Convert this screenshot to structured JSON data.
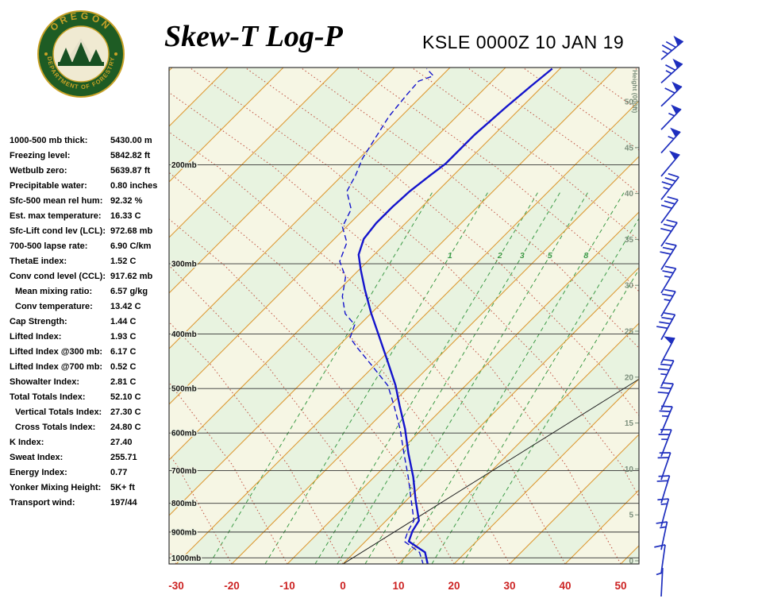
{
  "header": {
    "title": "Skew-T Log-P",
    "station_line": "KSLE 0000Z 10 JAN 19",
    "logo_top": "OREGON",
    "logo_bottom": "DEPARTMENT OF FORESTRY"
  },
  "stats": [
    {
      "label": "1000-500 mb thick:",
      "value": "5430.00 m",
      "indent": false
    },
    {
      "label": "Freezing level:",
      "value": "5842.82 ft",
      "indent": false
    },
    {
      "label": "Wetbulb zero:",
      "value": "5639.87 ft",
      "indent": false
    },
    {
      "label": "Precipitable water:",
      "value": "0.80 inches",
      "indent": false
    },
    {
      "label": "Sfc-500 mean rel hum:",
      "value": "92.32 %",
      "indent": false
    },
    {
      "label": "Est. max temperature:",
      "value": "16.33 C",
      "indent": false
    },
    {
      "label": "Sfc-Lift cond lev (LCL):",
      "value": "972.68 mb",
      "indent": false
    },
    {
      "label": "700-500 lapse rate:",
      "value": "6.90 C/km",
      "indent": false
    },
    {
      "label": "ThetaE index:",
      "value": "1.52 C",
      "indent": false
    },
    {
      "label": "Conv cond level (CCL):",
      "value": "917.62 mb",
      "indent": false
    },
    {
      "label": "Mean mixing ratio:",
      "value": "6.57 g/kg",
      "indent": true
    },
    {
      "label": "Conv temperature:",
      "value": "13.42 C",
      "indent": true
    },
    {
      "label": "Cap Strength:",
      "value": "1.44 C",
      "indent": false
    },
    {
      "label": "Lifted Index:",
      "value": "1.93 C",
      "indent": false
    },
    {
      "label": "Lifted Index @300 mb:",
      "value": "6.17 C",
      "indent": false
    },
    {
      "label": "Lifted Index @700 mb:",
      "value": "0.52 C",
      "indent": false
    },
    {
      "label": "Showalter Index:",
      "value": "2.81 C",
      "indent": false
    },
    {
      "label": "Total Totals Index:",
      "value": "52.10 C",
      "indent": false
    },
    {
      "label": "Vertical Totals Index:",
      "value": "27.30 C",
      "indent": true
    },
    {
      "label": "Cross Totals Index:",
      "value": "24.80 C",
      "indent": true
    },
    {
      "label": "K Index:",
      "value": "27.40",
      "indent": false
    },
    {
      "label": "Sweat Index:",
      "value": "255.71",
      "indent": false
    },
    {
      "label": "Energy Index:",
      "value": "0.77",
      "indent": false
    },
    {
      "label": "Yonker Mixing Height:",
      "value": "5K+ ft",
      "indent": false
    },
    {
      "label": "Transport wind:",
      "value": "197/44",
      "indent": false
    }
  ],
  "chart_data": {
    "type": "skew-t-log-p",
    "pressure_levels": [
      200,
      300,
      400,
      500,
      600,
      700,
      800,
      900,
      1000
    ],
    "pressure_label_suffix": "mb",
    "temp_axis": {
      "ticks": [
        -30,
        -20,
        -10,
        0,
        10,
        20,
        30,
        40,
        50
      ],
      "unit": "C"
    },
    "height_axis": {
      "label": "Height (000ft)",
      "ticks": [
        50,
        45,
        40,
        35,
        30,
        25,
        20,
        15,
        10,
        5,
        0
      ]
    },
    "mixing_ratio_lines": {
      "lines": [
        {
          "w": 0.4,
          "t": -24
        },
        {
          "w": 1,
          "t": -14
        },
        {
          "w": 2,
          "t": -5
        },
        {
          "w": 3,
          "t": -1
        },
        {
          "w": 5,
          "t": 4
        },
        {
          "w": 8,
          "t": 10.5
        },
        {
          "w": 12,
          "t": 16
        },
        {
          "w": 20,
          "t": 21.5
        }
      ],
      "labeled": [
        1,
        2,
        3,
        5,
        8
      ]
    },
    "series": [
      {
        "name": "temperature",
        "style": "solid",
        "points": [
          [
            1030,
            15.5
          ],
          [
            978,
            12.7
          ],
          [
            935,
            7.8
          ],
          [
            896,
            6.6
          ],
          [
            859,
            5.9
          ],
          [
            791,
            1.7
          ],
          [
            718,
            -3.0
          ],
          [
            652,
            -8.1
          ],
          [
            590,
            -13.1
          ],
          [
            536,
            -18.3
          ],
          [
            494,
            -22.6
          ],
          [
            448,
            -28.3
          ],
          [
            406,
            -34.1
          ],
          [
            368,
            -39.9
          ],
          [
            334,
            -45.3
          ],
          [
            308,
            -49.6
          ],
          [
            289,
            -52.8
          ],
          [
            271,
            -54.7
          ],
          [
            254,
            -55.3
          ],
          [
            238,
            -55.3
          ],
          [
            223,
            -55.0
          ],
          [
            209,
            -54.2
          ],
          [
            199,
            -53.5
          ],
          [
            177,
            -53.5
          ],
          [
            158,
            -52.8
          ],
          [
            145,
            -52.1
          ],
          [
            135,
            -51.4
          ]
        ]
      },
      {
        "name": "dewpoint",
        "style": "dashed",
        "points": [
          [
            1030,
            14.7
          ],
          [
            978,
            11.7
          ],
          [
            935,
            7.0
          ],
          [
            896,
            5.8
          ],
          [
            859,
            5.0
          ],
          [
            791,
            0.9
          ],
          [
            718,
            -3.9
          ],
          [
            652,
            -8.9
          ],
          [
            590,
            -14.0
          ],
          [
            536,
            -19.3
          ],
          [
            494,
            -24.0
          ],
          [
            455,
            -30.5
          ],
          [
            422,
            -36.5
          ],
          [
            406,
            -39.4
          ],
          [
            385,
            -40.9
          ],
          [
            368,
            -44.6
          ],
          [
            343,
            -48.2
          ],
          [
            317,
            -51.1
          ],
          [
            297,
            -55.0
          ],
          [
            275,
            -57.1
          ],
          [
            258,
            -60.7
          ],
          [
            240,
            -62.3
          ],
          [
            223,
            -66.3
          ],
          [
            209,
            -67.6
          ],
          [
            195,
            -69.4
          ],
          [
            179,
            -70.8
          ],
          [
            164,
            -72.2
          ],
          [
            150,
            -72.9
          ],
          [
            142,
            -73.2
          ],
          [
            139,
            -71.5
          ],
          [
            135,
            -74.0
          ]
        ]
      }
    ],
    "reference_line": {
      "points": [
        [
          1027,
          0
        ],
        [
          482,
          20
        ]
      ]
    },
    "winds": [
      {
        "spd": 75,
        "dir": 230
      },
      {
        "spd": 65,
        "dir": 228
      },
      {
        "spd": 60,
        "dir": 226
      },
      {
        "spd": 55,
        "dir": 224
      },
      {
        "spd": 55,
        "dir": 222
      },
      {
        "spd": 50,
        "dir": 220
      },
      {
        "spd": 35,
        "dir": 218
      },
      {
        "spd": 30,
        "dir": 216
      },
      {
        "spd": 30,
        "dir": 214
      },
      {
        "spd": 30,
        "dir": 212
      },
      {
        "spd": 25,
        "dir": 211
      },
      {
        "spd": 25,
        "dir": 210
      },
      {
        "spd": 40,
        "dir": 209
      },
      {
        "spd": 50,
        "dir": 208
      },
      {
        "spd": 35,
        "dir": 206
      },
      {
        "spd": 30,
        "dir": 205
      },
      {
        "spd": 25,
        "dir": 203
      },
      {
        "spd": 25,
        "dir": 201
      },
      {
        "spd": 20,
        "dir": 199
      },
      {
        "spd": 20,
        "dir": 197
      },
      {
        "spd": 15,
        "dir": 195
      },
      {
        "spd": 15,
        "dir": 192
      },
      {
        "spd": 10,
        "dir": 188
      },
      {
        "spd": 5,
        "dir": 183
      }
    ]
  },
  "colors": {
    "temp_tick": "#cc2222",
    "isotherm": "#dd9933",
    "adiabat": "#c05040",
    "mixing": "#3c9a46",
    "trace": "#1414cc",
    "barb": "#1e2ebe",
    "height_label": "#7c8f7c",
    "pressure_line": "#333333",
    "band_a": "#f6f6e4",
    "band_b": "#e8f3e0",
    "logo_green": "#1e5c24",
    "logo_gold": "#c9a227"
  }
}
